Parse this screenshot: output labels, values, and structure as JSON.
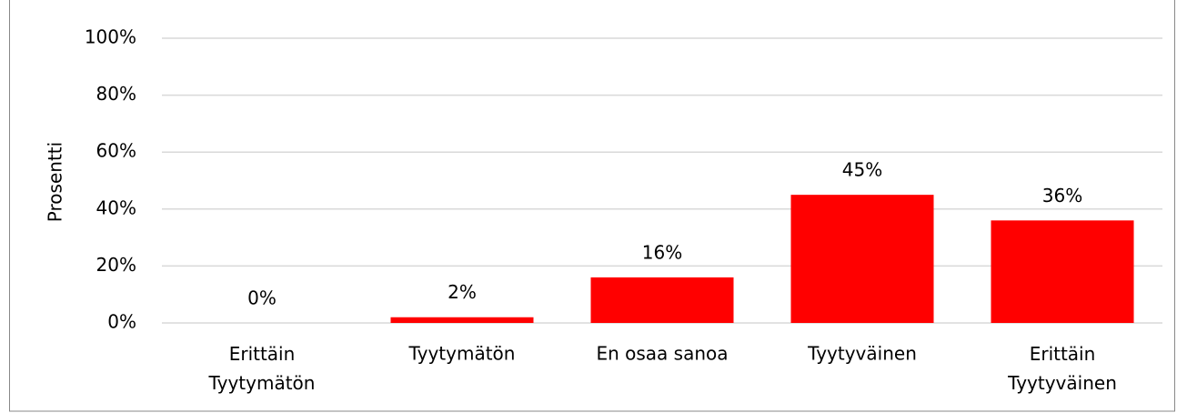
{
  "chart_data": {
    "type": "bar",
    "y_axis_label": "Prosentti",
    "categories": [
      "Erittäin Tyytymätön",
      "Tyytymätön",
      "En osaa sanoa",
      "Tyytyväinen",
      "Erittäin Tyytyväinen"
    ],
    "values": [
      0,
      2,
      16,
      45,
      36
    ],
    "value_labels": [
      "0%",
      "2%",
      "16%",
      "45%",
      "36%"
    ],
    "color": "#ff0000",
    "ylim": [
      0,
      100
    ],
    "yticks": [
      {
        "value": 0,
        "label": "0%"
      },
      {
        "value": 20,
        "label": "20%"
      },
      {
        "value": 40,
        "label": "40%"
      },
      {
        "value": 60,
        "label": "60%"
      },
      {
        "value": 80,
        "label": "80%"
      },
      {
        "value": 100,
        "label": "100%"
      }
    ],
    "grid": true
  }
}
